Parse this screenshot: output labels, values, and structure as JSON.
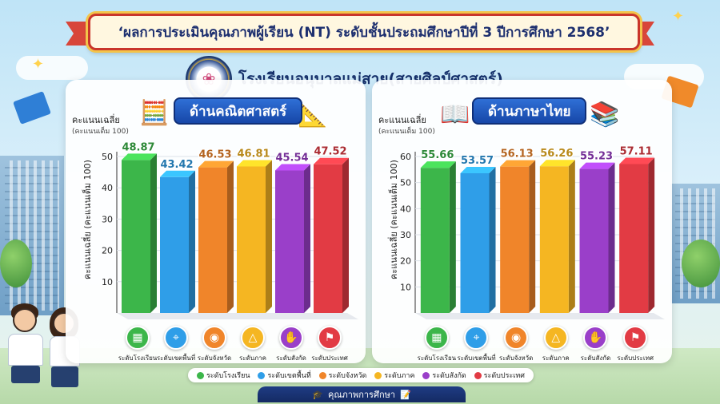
{
  "title": "‘ผลการประเมินคุณภาพผู้เรียน (NT) ระดับชั้นประถมศึกษาปีที่ 3 ปีการศึกษา 2568’",
  "school_name": "โรงเรียนอนุบาลแม่สาย(สายศิลป์ศาสตร์)",
  "footer": "คุณภาพการศึกษา",
  "colors": {
    "banner_border": "#c9352b",
    "subject_pill": "#1747a8",
    "series": [
      "#3cb64a",
      "#2f9ee8",
      "#f0852a",
      "#f5b622",
      "#9a3fc9",
      "#e23b44"
    ]
  },
  "legend": [
    "ระดับโรงเรียน",
    "ระดับเขตพื้นที่",
    "ระดับจังหวัด",
    "ระดับภาค",
    "ระดับสังกัด",
    "ระดับประเทศ"
  ],
  "category_icons": [
    "calculator-icon",
    "map-icon",
    "location-pin-icon",
    "compass-icon",
    "hand-icon",
    "map-pin-icon"
  ],
  "chart_data": [
    {
      "type": "bar",
      "title": "ด้านคณิตศาสตร์",
      "ylabel_top": "คะแนนเฉลี่ย",
      "ylabel_top_sub": "(คะแนนเต็ม 100)",
      "ylabel_vertical": "คะแนนเฉลี่ย (คะแนนเต็ม 100)",
      "categories": [
        "ระดับโรงเรียน",
        "ระดับเขตพื้นที่",
        "ระดับจังหวัด",
        "ระดับภาค",
        "ระดับสังกัด",
        "ระดับประเทศ"
      ],
      "values": [
        48.87,
        43.42,
        46.53,
        46.81,
        45.54,
        47.52
      ],
      "value_labels": [
        "48.87",
        "43.42",
        "46.53",
        "46.81",
        "45.54",
        "47.52"
      ],
      "ylim": [
        0,
        50
      ],
      "yticks": [
        "10",
        "20",
        "30",
        "40",
        "50"
      ]
    },
    {
      "type": "bar",
      "title": "ด้านภาษาไทย",
      "ylabel_top": "คะแนนเฉลี่ย",
      "ylabel_top_sub": "(คะแนนเต็ม 100)",
      "ylabel_vertical": "คะแนนเฉลี่ย (คะแนนเต็ม 100)",
      "categories": [
        "ระดับโรงเรียน",
        "ระดับเขตพื้นที่",
        "ระดับจังหวัด",
        "ระดับภาค",
        "ระดับสังกัด",
        "ระดับประเทศ"
      ],
      "values": [
        55.66,
        53.57,
        56.13,
        56.26,
        55.23,
        57.11
      ],
      "value_labels": [
        "55.66",
        "53.57",
        "56.13",
        "56.26",
        "55.23",
        "57.11"
      ],
      "ylim": [
        0,
        60
      ],
      "yticks": [
        "10",
        "20",
        "30",
        "40",
        "50",
        "60"
      ]
    }
  ]
}
